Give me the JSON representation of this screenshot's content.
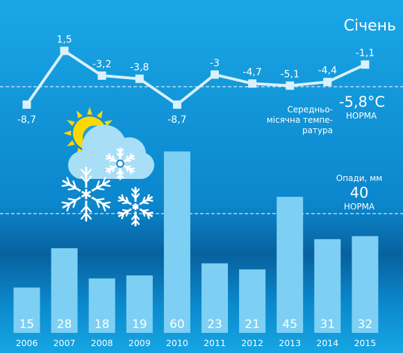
{
  "title": "Січень",
  "colors": {
    "bar": "#7dd0f4",
    "line": "#d8f1fc",
    "bg_top": "#1aa7e6",
    "bg_mid": "#0a82c9",
    "bg_bottom": "#0fa1de",
    "sun": "#fbd800",
    "cloud": "#a9dff6"
  },
  "temperature_norm": {
    "label": "Середньо-\nмісячна темпе-\nратура",
    "value": "-5,8°C",
    "norm_label": "НОРМА"
  },
  "precipitation_norm": {
    "label": "Опади, мм",
    "value": "40",
    "norm_label": "НОРМА"
  },
  "chart_data": [
    {
      "type": "line",
      "x": [
        "2006",
        "2007",
        "2008",
        "2009",
        "2010",
        "2011",
        "2012",
        "2013",
        "2014",
        "2015"
      ],
      "values": [
        -8.7,
        1.5,
        -3.2,
        -3.8,
        -8.7,
        -3.0,
        -4.7,
        -5.1,
        -4.4,
        -1.1
      ],
      "labels": [
        "-8,7",
        "1,5",
        "-3,2",
        "-3,8",
        "-8,7",
        "-3",
        "-4,7",
        "-5,1",
        "-4,4",
        "-1,1"
      ],
      "reference": -5.8
    },
    {
      "type": "bar",
      "categories": [
        "2006",
        "2007",
        "2008",
        "2009",
        "2010",
        "2011",
        "2012",
        "2013",
        "2014",
        "2015"
      ],
      "values": [
        15,
        28,
        18,
        19,
        60,
        23,
        21,
        45,
        31,
        32
      ],
      "reference": 40
    }
  ]
}
